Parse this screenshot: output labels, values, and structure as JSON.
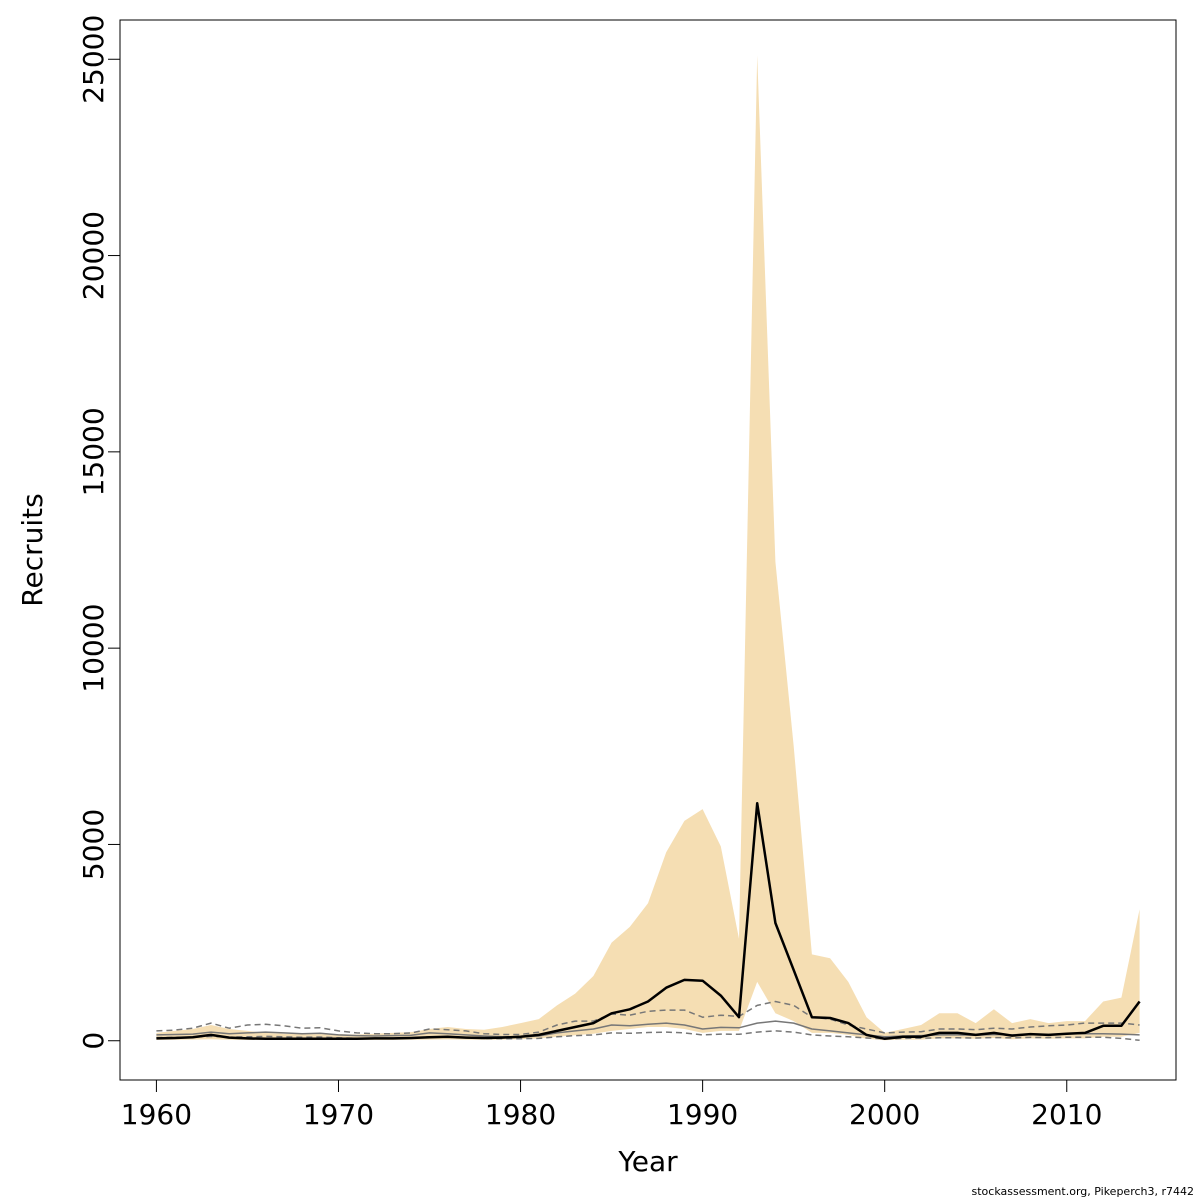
{
  "chart_data": {
    "type": "line",
    "title": "",
    "xlabel": "Year",
    "ylabel": "Recruits",
    "xlim": [
      1958,
      2016
    ],
    "ylim": [
      -1000,
      26000
    ],
    "x_ticks": [
      1960,
      1970,
      1980,
      1990,
      2000,
      2010
    ],
    "y_ticks": [
      0,
      5000,
      10000,
      15000,
      20000,
      25000
    ],
    "grid": false,
    "legend": "none",
    "caption": "stockassessment.org, Pikeperch3, r7442",
    "colors": {
      "band": "#f5deb3",
      "estimate": "#000000",
      "previous": "#777777"
    },
    "years": [
      1960,
      1961,
      1962,
      1963,
      1964,
      1965,
      1966,
      1967,
      1968,
      1969,
      1970,
      1971,
      1972,
      1973,
      1974,
      1975,
      1976,
      1977,
      1978,
      1979,
      1980,
      1981,
      1982,
      1983,
      1984,
      1985,
      1986,
      1987,
      1988,
      1989,
      1990,
      1991,
      1992,
      1993,
      1994,
      1995,
      1996,
      1997,
      1998,
      1999,
      2000,
      2001,
      2002,
      2003,
      2004,
      2005,
      2006,
      2007,
      2008,
      2009,
      2010,
      2011,
      2012,
      2013,
      2014
    ],
    "series": [
      {
        "role": "estimate",
        "values": [
          60,
          70,
          90,
          150,
          80,
          60,
          50,
          50,
          50,
          50,
          50,
          50,
          60,
          60,
          70,
          90,
          100,
          80,
          70,
          80,
          100,
          150,
          250,
          350,
          450,
          700,
          800,
          1000,
          1350,
          1550,
          1530,
          1150,
          600,
          6050,
          3000,
          1800,
          600,
          580,
          450,
          150,
          50,
          100,
          100,
          200,
          200,
          150,
          200,
          130,
          170,
          150,
          180,
          200,
          380,
          380,
          1000
        ]
      },
      {
        "role": "lower-ci",
        "values": [
          20,
          25,
          30,
          40,
          25,
          20,
          20,
          20,
          20,
          20,
          20,
          20,
          20,
          20,
          25,
          30,
          35,
          30,
          25,
          30,
          40,
          60,
          100,
          140,
          180,
          250,
          300,
          350,
          350,
          300,
          200,
          250,
          250,
          1500,
          700,
          500,
          200,
          200,
          150,
          50,
          15,
          30,
          30,
          60,
          60,
          50,
          70,
          40,
          60,
          50,
          60,
          60,
          100,
          100,
          200
        ]
      },
      {
        "role": "upper-ci",
        "values": [
          200,
          250,
          300,
          400,
          300,
          250,
          200,
          180,
          170,
          170,
          170,
          160,
          180,
          200,
          220,
          300,
          350,
          300,
          280,
          350,
          450,
          550,
          900,
          1200,
          1650,
          2500,
          2900,
          3500,
          4800,
          5600,
          5900,
          4950,
          2600,
          25100,
          12200,
          7500,
          2200,
          2100,
          1500,
          600,
          200,
          300,
          400,
          700,
          700,
          450,
          800,
          450,
          550,
          450,
          500,
          500,
          1000,
          1100,
          3350
        ]
      },
      {
        "role": "previous-estimate",
        "values": [
          150,
          160,
          170,
          220,
          180,
          200,
          220,
          200,
          180,
          190,
          150,
          130,
          120,
          130,
          140,
          200,
          180,
          150,
          120,
          100,
          100,
          120,
          200,
          250,
          300,
          400,
          380,
          420,
          450,
          400,
          300,
          340,
          330,
          450,
          500,
          450,
          300,
          250,
          200,
          150,
          100,
          120,
          130,
          150,
          150,
          140,
          160,
          150,
          170,
          160,
          180,
          180,
          180,
          170,
          150
        ]
      },
      {
        "role": "previous-upper",
        "values": [
          250,
          270,
          320,
          450,
          320,
          400,
          420,
          380,
          320,
          330,
          250,
          200,
          180,
          180,
          200,
          300,
          280,
          250,
          180,
          160,
          160,
          220,
          400,
          500,
          500,
          680,
          650,
          750,
          780,
          780,
          600,
          650,
          620,
          900,
          1000,
          900,
          600,
          550,
          400,
          300,
          200,
          220,
          230,
          300,
          300,
          280,
          320,
          300,
          350,
          380,
          400,
          450,
          450,
          450,
          400
        ]
      },
      {
        "role": "previous-lower",
        "values": [
          80,
          85,
          90,
          110,
          90,
          100,
          110,
          100,
          90,
          95,
          75,
          65,
          60,
          65,
          70,
          100,
          90,
          75,
          60,
          50,
          50,
          60,
          100,
          130,
          150,
          200,
          190,
          210,
          220,
          200,
          150,
          170,
          165,
          220,
          250,
          220,
          150,
          120,
          100,
          70,
          50,
          60,
          65,
          75,
          75,
          70,
          80,
          75,
          85,
          80,
          90,
          90,
          90,
          60,
          10
        ]
      }
    ]
  }
}
